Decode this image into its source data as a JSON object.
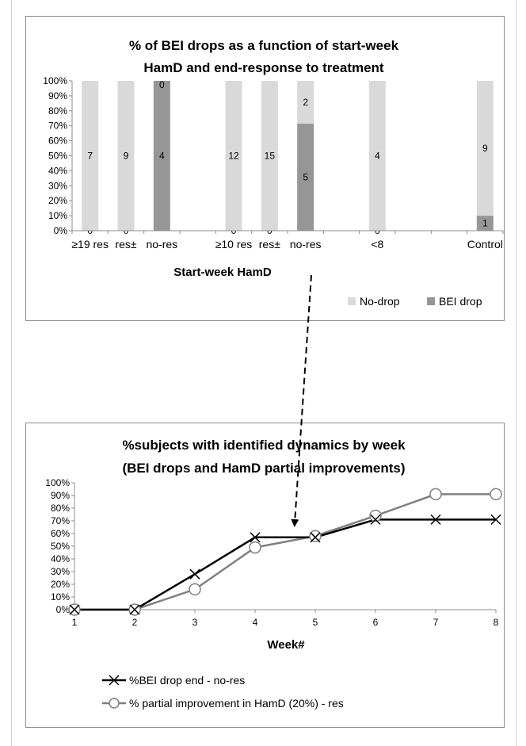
{
  "chart_data": [
    {
      "type": "bar",
      "stacked": true,
      "title": "% of BEI drops as a function of start-week HamD and end-response to treatment",
      "title_lines": [
        "% of BEI drops as a function of start-week",
        "HamD and end-response to treatment"
      ],
      "xlabel": "Start-week HamD",
      "ylabel": "",
      "ylim": [
        0,
        100
      ],
      "y_ticks": [
        "0%",
        "10%",
        "20%",
        "30%",
        "40%",
        "50%",
        "60%",
        "70%",
        "80%",
        "90%",
        "100%"
      ],
      "categories": [
        "≥19 res",
        "res±",
        "no-res",
        "≥10 res",
        "res±",
        "no-res",
        "<8",
        "Control"
      ],
      "series": [
        {
          "name": "BEI drop",
          "color": "#969696",
          "values": [
            0,
            0,
            100,
            0,
            0,
            71.4,
            0,
            10
          ],
          "labels": [
            "0",
            "0",
            "4",
            "0",
            "0",
            "5",
            "0",
            "1"
          ]
        },
        {
          "name": "No-drop",
          "color": "#d9d9d9",
          "values": [
            100,
            100,
            0,
            100,
            100,
            28.6,
            100,
            90
          ],
          "labels": [
            "7",
            "9",
            "0",
            "12",
            "15",
            "2",
            "4",
            "9"
          ]
        }
      ],
      "legend_position": "bottom-right",
      "legend": [
        "No-drop",
        "BEI drop"
      ],
      "grid": false
    },
    {
      "type": "line",
      "title": "%subjects with identified dynamics by week (BEI drops and HamD partial improvements)",
      "title_lines": [
        "%subjects with identified dynamics by week",
        "(BEI drops and HamD partial improvements)"
      ],
      "xlabel": "Week#",
      "ylabel": "",
      "ylim": [
        0,
        100
      ],
      "xlim": [
        1,
        8
      ],
      "x": [
        1,
        2,
        3,
        4,
        5,
        6,
        7,
        8
      ],
      "y_ticks": [
        "0%",
        "10%",
        "20%",
        "30%",
        "40%",
        "50%",
        "60%",
        "70%",
        "80%",
        "90%",
        "100%"
      ],
      "x_ticks": [
        "1",
        "2",
        "3",
        "4",
        "5",
        "6",
        "7",
        "8"
      ],
      "series": [
        {
          "name": "%BEI drop end - no-res",
          "color": "#000000",
          "marker": "x",
          "values": [
            0,
            0,
            28,
            57,
            57,
            71,
            71,
            71
          ]
        },
        {
          "name": "% partial improvement in HamD (20%) - res",
          "color": "#808080",
          "marker": "o",
          "values": [
            0,
            0,
            16,
            49,
            58,
            74,
            91,
            91
          ]
        }
      ],
      "legend_position": "bottom",
      "grid": false
    }
  ]
}
